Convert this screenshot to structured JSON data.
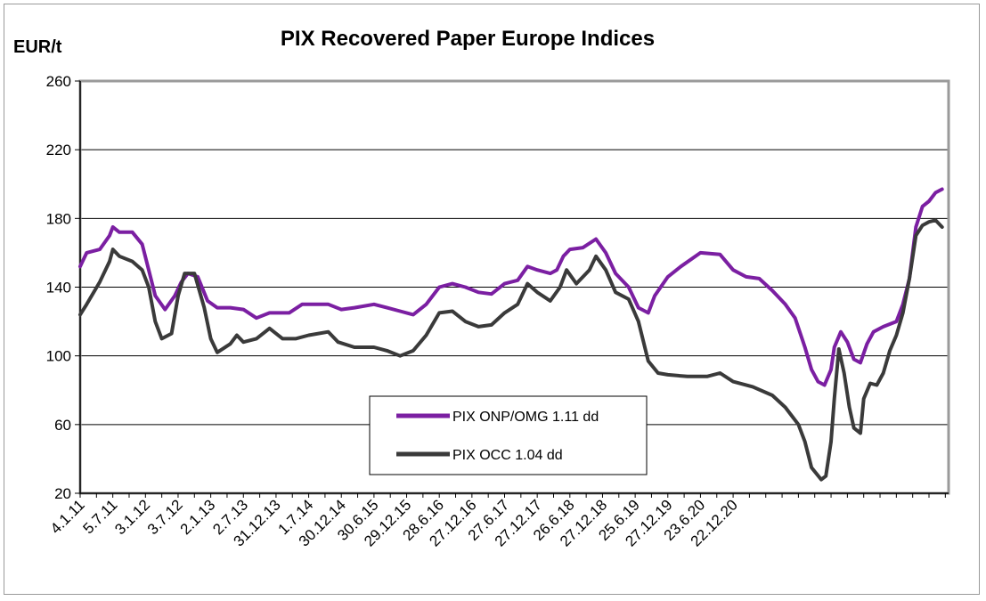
{
  "chart_data": {
    "type": "line",
    "title": "PIX Recovered Paper Europe Indices",
    "ylabel": "EUR/t",
    "xlabel": "",
    "ylim": [
      20,
      260
    ],
    "yticks": [
      20,
      60,
      100,
      140,
      180,
      220,
      260
    ],
    "x_tick_labels": [
      "4.1.11",
      "5.7.11",
      "3.1.12",
      "3.7.12",
      "2.1.13",
      "2.7.13",
      "31.12.13",
      "1.7.14",
      "30.12.14",
      "30.6.15",
      "29.12.15",
      "28.6.16",
      "27.12.16",
      "27.6.17",
      "27.12.17",
      "26.6.18",
      "27.12.18",
      "25.6.19",
      "27.12.19",
      "23.6.20",
      "22.12.20"
    ],
    "grid": "horizontal",
    "legend_position": "bottom-center",
    "x_unit": "years since 4.1.11",
    "series": [
      {
        "name": "PIX ONP/OMG 1.11 dd",
        "color": "#7B1FA2",
        "points": [
          [
            0,
            152
          ],
          [
            0.1,
            160
          ],
          [
            0.3,
            162
          ],
          [
            0.45,
            170
          ],
          [
            0.5,
            175
          ],
          [
            0.6,
            172
          ],
          [
            0.8,
            172
          ],
          [
            0.95,
            165
          ],
          [
            1.05,
            150
          ],
          [
            1.15,
            135
          ],
          [
            1.3,
            127
          ],
          [
            1.45,
            135
          ],
          [
            1.55,
            143
          ],
          [
            1.65,
            148
          ],
          [
            1.8,
            146
          ],
          [
            1.95,
            132
          ],
          [
            2.1,
            128
          ],
          [
            2.3,
            128
          ],
          [
            2.5,
            127
          ],
          [
            2.7,
            122
          ],
          [
            2.9,
            125
          ],
          [
            3.2,
            125
          ],
          [
            3.4,
            130
          ],
          [
            3.6,
            130
          ],
          [
            3.8,
            130
          ],
          [
            4.0,
            127
          ],
          [
            4.2,
            128
          ],
          [
            4.5,
            130
          ],
          [
            4.7,
            128
          ],
          [
            4.9,
            126
          ],
          [
            5.1,
            124
          ],
          [
            5.3,
            130
          ],
          [
            5.5,
            140
          ],
          [
            5.7,
            142
          ],
          [
            5.9,
            140
          ],
          [
            6.1,
            137
          ],
          [
            6.3,
            136
          ],
          [
            6.5,
            142
          ],
          [
            6.7,
            144
          ],
          [
            6.85,
            152
          ],
          [
            7.0,
            150
          ],
          [
            7.2,
            148
          ],
          [
            7.3,
            150
          ],
          [
            7.4,
            158
          ],
          [
            7.5,
            162
          ],
          [
            7.7,
            163
          ],
          [
            7.9,
            168
          ],
          [
            8.05,
            160
          ],
          [
            8.2,
            148
          ],
          [
            8.4,
            140
          ],
          [
            8.55,
            128
          ],
          [
            8.7,
            125
          ],
          [
            8.8,
            135
          ],
          [
            9.0,
            146
          ],
          [
            9.2,
            152
          ],
          [
            9.5,
            160
          ],
          [
            9.8,
            159
          ],
          [
            10.0,
            150
          ],
          [
            10.2,
            146
          ],
          [
            10.4,
            145
          ],
          [
            10.6,
            138
          ],
          [
            10.8,
            130
          ],
          [
            10.95,
            122
          ],
          [
            11.1,
            105
          ],
          [
            11.2,
            92
          ],
          [
            11.3,
            85
          ],
          [
            11.4,
            83
          ],
          [
            11.5,
            92
          ],
          [
            11.55,
            105
          ],
          [
            11.65,
            114
          ],
          [
            11.75,
            108
          ],
          [
            11.85,
            98
          ],
          [
            11.95,
            96
          ],
          [
            12.05,
            107
          ],
          [
            12.15,
            114
          ],
          [
            12.3,
            117
          ],
          [
            12.5,
            120
          ],
          [
            12.6,
            130
          ],
          [
            12.7,
            145
          ],
          [
            12.8,
            175
          ],
          [
            12.9,
            187
          ],
          [
            13.0,
            190
          ],
          [
            13.1,
            195
          ],
          [
            13.2,
            197
          ]
        ]
      },
      {
        "name": "PIX OCC 1.04 dd",
        "color": "#3A3A3A",
        "points": [
          [
            0,
            124
          ],
          [
            0.1,
            130
          ],
          [
            0.3,
            143
          ],
          [
            0.45,
            155
          ],
          [
            0.5,
            162
          ],
          [
            0.6,
            158
          ],
          [
            0.8,
            155
          ],
          [
            0.95,
            150
          ],
          [
            1.05,
            140
          ],
          [
            1.15,
            120
          ],
          [
            1.25,
            110
          ],
          [
            1.4,
            113
          ],
          [
            1.5,
            135
          ],
          [
            1.6,
            148
          ],
          [
            1.75,
            148
          ],
          [
            1.9,
            128
          ],
          [
            2.0,
            110
          ],
          [
            2.1,
            102
          ],
          [
            2.3,
            107
          ],
          [
            2.4,
            112
          ],
          [
            2.5,
            108
          ],
          [
            2.7,
            110
          ],
          [
            2.9,
            116
          ],
          [
            3.1,
            110
          ],
          [
            3.3,
            110
          ],
          [
            3.5,
            112
          ],
          [
            3.8,
            114
          ],
          [
            3.95,
            108
          ],
          [
            4.2,
            105
          ],
          [
            4.5,
            105
          ],
          [
            4.7,
            103
          ],
          [
            4.9,
            100
          ],
          [
            5.1,
            103
          ],
          [
            5.3,
            112
          ],
          [
            5.5,
            125
          ],
          [
            5.7,
            126
          ],
          [
            5.9,
            120
          ],
          [
            6.1,
            117
          ],
          [
            6.3,
            118
          ],
          [
            6.5,
            125
          ],
          [
            6.7,
            130
          ],
          [
            6.85,
            142
          ],
          [
            7.0,
            137
          ],
          [
            7.2,
            132
          ],
          [
            7.35,
            140
          ],
          [
            7.45,
            150
          ],
          [
            7.6,
            142
          ],
          [
            7.8,
            150
          ],
          [
            7.9,
            158
          ],
          [
            8.05,
            150
          ],
          [
            8.2,
            137
          ],
          [
            8.4,
            133
          ],
          [
            8.55,
            120
          ],
          [
            8.7,
            97
          ],
          [
            8.85,
            90
          ],
          [
            9.0,
            89
          ],
          [
            9.3,
            88
          ],
          [
            9.6,
            88
          ],
          [
            9.8,
            90
          ],
          [
            10.0,
            85
          ],
          [
            10.3,
            82
          ],
          [
            10.6,
            77
          ],
          [
            10.8,
            70
          ],
          [
            11.0,
            60
          ],
          [
            11.1,
            50
          ],
          [
            11.2,
            35
          ],
          [
            11.35,
            28
          ],
          [
            11.42,
            30
          ],
          [
            11.5,
            50
          ],
          [
            11.55,
            75
          ],
          [
            11.62,
            104
          ],
          [
            11.7,
            90
          ],
          [
            11.78,
            70
          ],
          [
            11.85,
            58
          ],
          [
            11.95,
            55
          ],
          [
            12.0,
            75
          ],
          [
            12.1,
            84
          ],
          [
            12.2,
            83
          ],
          [
            12.3,
            90
          ],
          [
            12.4,
            103
          ],
          [
            12.5,
            112
          ],
          [
            12.6,
            125
          ],
          [
            12.7,
            145
          ],
          [
            12.8,
            170
          ],
          [
            12.9,
            176
          ],
          [
            13.0,
            178
          ],
          [
            13.1,
            179
          ],
          [
            13.2,
            175
          ]
        ]
      }
    ]
  }
}
